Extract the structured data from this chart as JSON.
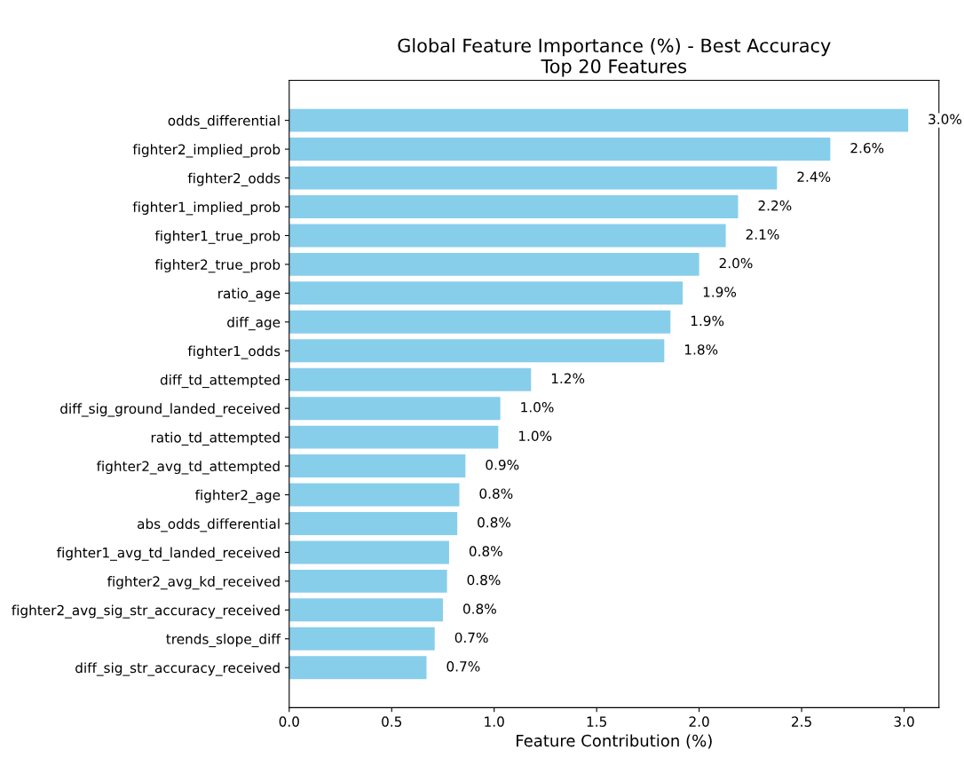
{
  "chart_data": {
    "type": "bar",
    "orientation": "horizontal",
    "title": "Global Feature Importance (%) - Best Accuracy\nTop 20 Features",
    "xlabel": "Feature Contribution (%)",
    "categories": [
      "odds_differential",
      "fighter2_implied_prob",
      "fighter2_odds",
      "fighter1_implied_prob",
      "fighter1_true_prob",
      "fighter2_true_prob",
      "ratio_age",
      "diff_age",
      "fighter1_odds",
      "diff_td_attempted",
      "diff_sig_ground_landed_received",
      "ratio_td_attempted",
      "fighter2_avg_td_attempted",
      "fighter2_age",
      "abs_odds_differential",
      "fighter1_avg_td_landed_received",
      "fighter2_avg_kd_received",
      "fighter2_avg_sig_str_accuracy_received",
      "trends_slope_diff",
      "diff_sig_str_accuracy_received"
    ],
    "values": [
      3.02,
      2.64,
      2.38,
      2.19,
      2.13,
      2.0,
      1.92,
      1.86,
      1.83,
      1.18,
      1.03,
      1.02,
      0.86,
      0.83,
      0.82,
      0.78,
      0.77,
      0.75,
      0.71,
      0.67
    ],
    "value_labels": [
      "3.0%",
      "2.6%",
      "2.4%",
      "2.2%",
      "2.1%",
      "2.0%",
      "1.9%",
      "1.9%",
      "1.8%",
      "1.2%",
      "1.0%",
      "1.0%",
      "0.9%",
      "0.8%",
      "0.8%",
      "0.8%",
      "0.8%",
      "0.8%",
      "0.7%",
      "0.7%"
    ],
    "color": "#87ceeb",
    "xlim": [
      0,
      3.17
    ],
    "xticks": [
      {
        "value": 0,
        "label": "0.0"
      },
      {
        "value": 0.5,
        "label": "0.5"
      },
      {
        "value": 1,
        "label": "1.0"
      },
      {
        "value": 1.5,
        "label": "1.5"
      },
      {
        "value": 2,
        "label": "2.0"
      },
      {
        "value": 2.5,
        "label": "2.5"
      },
      {
        "value": 3,
        "label": "3.0"
      }
    ],
    "grid": false
  }
}
